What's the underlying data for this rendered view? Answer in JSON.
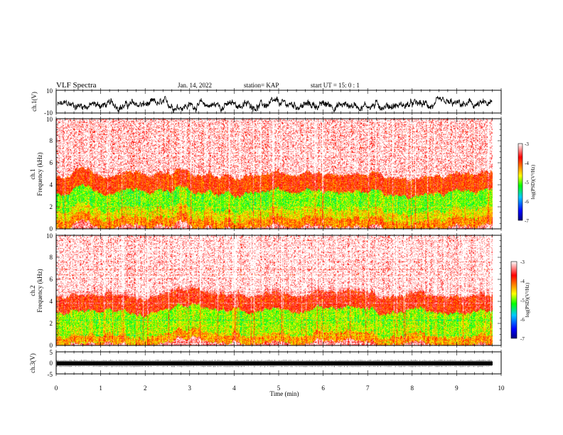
{
  "header": {
    "title": "VLF Spectra",
    "date": "Jan. 14, 2022",
    "station": "station= KAP",
    "start": "start  UT =   15: 0  : 1"
  },
  "colors": {
    "background": "#ffffff",
    "trace": "#000000",
    "colormap": [
      "#000080",
      "#0000ff",
      "#00c8ff",
      "#00ff00",
      "#ffff00",
      "#ff8000",
      "#ff0000",
      "#ffffff"
    ]
  },
  "chart_data": [
    {
      "type": "line",
      "id": "ch1-voltage",
      "ylabel": "ch.1(V)",
      "ylim": [
        -10,
        10
      ],
      "yticks": [
        "10",
        "-10"
      ],
      "xlim": [
        0,
        10
      ],
      "trace": "noisy waveform mostly between -8 and 2 V"
    },
    {
      "type": "heatmap",
      "id": "ch1-spectrogram",
      "ylabel_lines": [
        "ch.1",
        "Frequency (kHz)"
      ],
      "ylim": [
        0,
        10
      ],
      "yticks": [
        "0",
        "2",
        "4",
        "6",
        "8",
        "10"
      ],
      "xlim": [
        0,
        9.82
      ],
      "colorbar": {
        "label": "log(PSD)(V²/Hz)",
        "range": [
          -7,
          -3
        ],
        "ticks": [
          "-3",
          "-4",
          "-5",
          "-6",
          "-7"
        ]
      },
      "bands": [
        {
          "from_khz": 0,
          "to_khz": 0.8,
          "level": -4.2
        },
        {
          "from_khz": 0.8,
          "to_khz": 1.6,
          "level": -4.6
        },
        {
          "from_khz": 1.6,
          "to_khz": 3.2,
          "level": -5.0
        },
        {
          "from_khz": 3.2,
          "to_khz": 4.8,
          "level": -3.9
        },
        {
          "from_khz": 4.8,
          "to_khz": 10,
          "level": -3.3
        }
      ]
    },
    {
      "type": "heatmap",
      "id": "ch2-spectrogram",
      "ylabel_lines": [
        "ch.2",
        "Frequency (kHz)"
      ],
      "ylim": [
        0,
        10
      ],
      "yticks": [
        "0",
        "2",
        "4",
        "6",
        "8",
        "10"
      ],
      "xlim": [
        0,
        9.82
      ],
      "colorbar": {
        "label": "log(PSD)(V²/Hz)",
        "range": [
          -7,
          -3
        ],
        "ticks": [
          "-3",
          "-4",
          "-5",
          "-6",
          "-7"
        ]
      },
      "bands": [
        {
          "from_khz": 0,
          "to_khz": 0.8,
          "level": -4.3
        },
        {
          "from_khz": 0.8,
          "to_khz": 1.5,
          "level": -4.8
        },
        {
          "from_khz": 1.5,
          "to_khz": 3.0,
          "level": -4.9
        },
        {
          "from_khz": 3.0,
          "to_khz": 4.5,
          "level": -3.8
        },
        {
          "from_khz": 4.5,
          "to_khz": 10,
          "level": -3.2
        }
      ]
    },
    {
      "type": "line",
      "id": "ch3-voltage",
      "ylabel": "ch.3(V)",
      "ylim": [
        -5,
        5
      ],
      "yticks": [
        "5",
        "0",
        "-5"
      ],
      "xlim": [
        0,
        10
      ],
      "trace": "dense band near -1 V"
    }
  ],
  "xaxis": {
    "label": "Time (min)",
    "ticks": [
      "0",
      "1",
      "2",
      "3",
      "4",
      "5",
      "6",
      "7",
      "8",
      "9",
      "10"
    ]
  }
}
